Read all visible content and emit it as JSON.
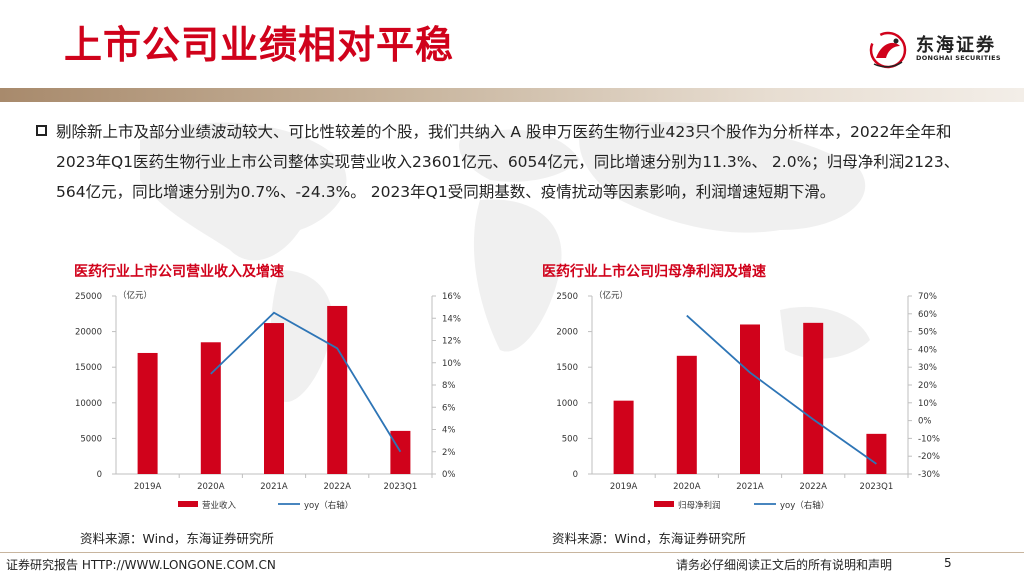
{
  "header": {
    "title": "上市公司业绩相对平稳",
    "logo_name": "东海证券",
    "logo_sub": "DONGHAI SECURITIES"
  },
  "body_text": "剔除新上市及部分业绩波动较大、可比性较差的个股，我们共纳入 A 股申万医药生物行业423只个股作为分析样本，2022年全年和2023年Q1医药生物行业上市公司整体实现营业收入23601亿元、6054亿元，同比增速分别为11.3%、 2.0%；归母净利润2123、564亿元，同比增速分别为0.7%、-24.3%。 2023年Q1受同期基数、疫情扰动等因素影响，利润增速短期下滑。",
  "colors": {
    "accent": "#d0021b",
    "bar": "#d0021b",
    "line": "#2e75b6"
  },
  "chart_data": [
    {
      "type": "bar",
      "title": "医药行业上市公司营业收入及增速",
      "unit_label": "（亿元）",
      "categories": [
        "2019A",
        "2020A",
        "2021A",
        "2022A",
        "2023Q1"
      ],
      "series": [
        {
          "name": "营业收入",
          "type": "bar",
          "axis": "left",
          "values": [
            17000,
            18500,
            21200,
            23601,
            6054
          ]
        },
        {
          "name": "yoy（右轴）",
          "type": "line",
          "axis": "right",
          "values": [
            null,
            9.0,
            14.5,
            11.3,
            2.0
          ]
        }
      ],
      "y_left": {
        "min": 0,
        "max": 25000,
        "ticks": [
          "0",
          "5000",
          "10000",
          "15000",
          "20000",
          "25000"
        ]
      },
      "y_right": {
        "min": 0,
        "max": 16,
        "ticks": [
          "0%",
          "2%",
          "4%",
          "6%",
          "8%",
          "10%",
          "12%",
          "14%",
          "16%"
        ]
      },
      "legend": [
        "营业收入",
        "yoy（右轴）"
      ],
      "legend_position": "bottom",
      "source": "资料来源：Wind，东海证券研究所"
    },
    {
      "type": "bar",
      "title": "医药行业上市公司归母净利润及增速",
      "unit_label": "（亿元）",
      "categories": [
        "2019A",
        "2020A",
        "2021A",
        "2022A",
        "2023Q1"
      ],
      "series": [
        {
          "name": "归母净利润",
          "type": "bar",
          "axis": "left",
          "values": [
            1030,
            1660,
            2100,
            2123,
            564
          ]
        },
        {
          "name": "yoy（右轴）",
          "type": "line",
          "axis": "right",
          "values": [
            null,
            59,
            27,
            0.7,
            -24.3
          ]
        }
      ],
      "y_left": {
        "min": 0,
        "max": 2500,
        "ticks": [
          "0",
          "500",
          "1000",
          "1500",
          "2000",
          "2500"
        ]
      },
      "y_right": {
        "min": -30,
        "max": 70,
        "ticks": [
          "-30%",
          "-20%",
          "-10%",
          "0%",
          "10%",
          "20%",
          "30%",
          "40%",
          "50%",
          "60%",
          "70%"
        ]
      },
      "legend": [
        "归母净利润",
        "yoy（右轴）"
      ],
      "legend_position": "bottom",
      "source": "资料来源：Wind，东海证券研究所"
    }
  ],
  "footer": {
    "left": "证券研究报告 HTTP://WWW.LONGONE.COM.CN",
    "right": "请务必仔细阅读正文后的所有说明和声明",
    "page": "5"
  }
}
